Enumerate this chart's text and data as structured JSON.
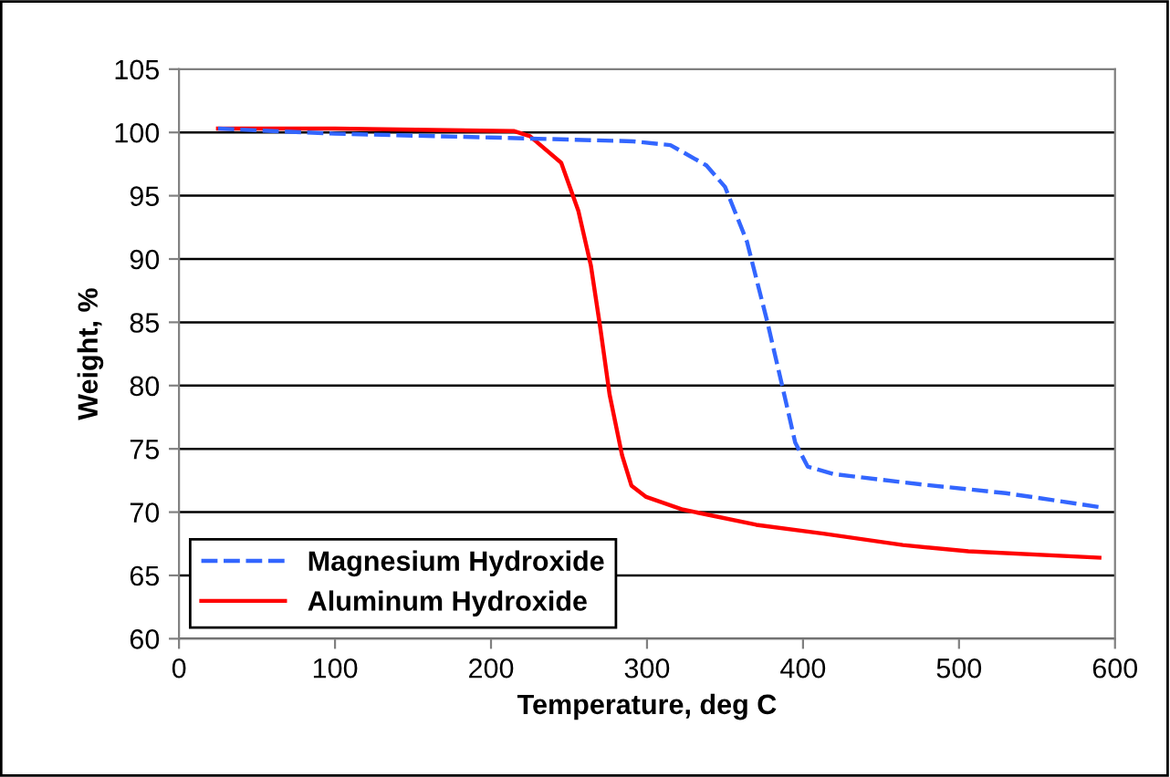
{
  "chart_data": {
    "type": "line",
    "xlabel": "Temperature, deg C",
    "ylabel": "Weight, %",
    "xlim": [
      0,
      600
    ],
    "xticks": [
      0,
      100,
      200,
      300,
      400,
      500,
      600
    ],
    "ylim": [
      60,
      105
    ],
    "yticks": [
      60,
      65,
      70,
      75,
      80,
      85,
      90,
      95,
      100,
      105
    ],
    "grid": "y",
    "legend": "bottom left",
    "series": [
      {
        "name": "Magnesium Hydroxide",
        "color": "#3366ff",
        "line_style": "dashed",
        "x": [
          25,
          100,
          200,
          291,
          315,
          338,
          350,
          364,
          377,
          387,
          395,
          403,
          420,
          475,
          530,
          590
        ],
        "values": [
          100.3,
          99.9,
          99.6,
          99.3,
          99.0,
          97.4,
          95.7,
          91.4,
          85.1,
          79.8,
          75.5,
          73.6,
          73.0,
          72.2,
          71.5,
          70.4
        ]
      },
      {
        "name": "Aluminum Hydroxide",
        "color": "#ff0000",
        "line_style": "solid",
        "x": [
          25,
          100,
          215,
          225,
          245,
          256,
          264,
          270,
          276,
          284,
          290,
          299.5,
          323,
          370,
          413,
          464,
          506,
          590
        ],
        "values": [
          100.3,
          100.3,
          100.1,
          99.7,
          97.6,
          93.8,
          89.5,
          84.6,
          79.3,
          74.5,
          72.1,
          71.2,
          70.2,
          69.0,
          68.3,
          67.4,
          66.9,
          66.4
        ]
      }
    ]
  }
}
